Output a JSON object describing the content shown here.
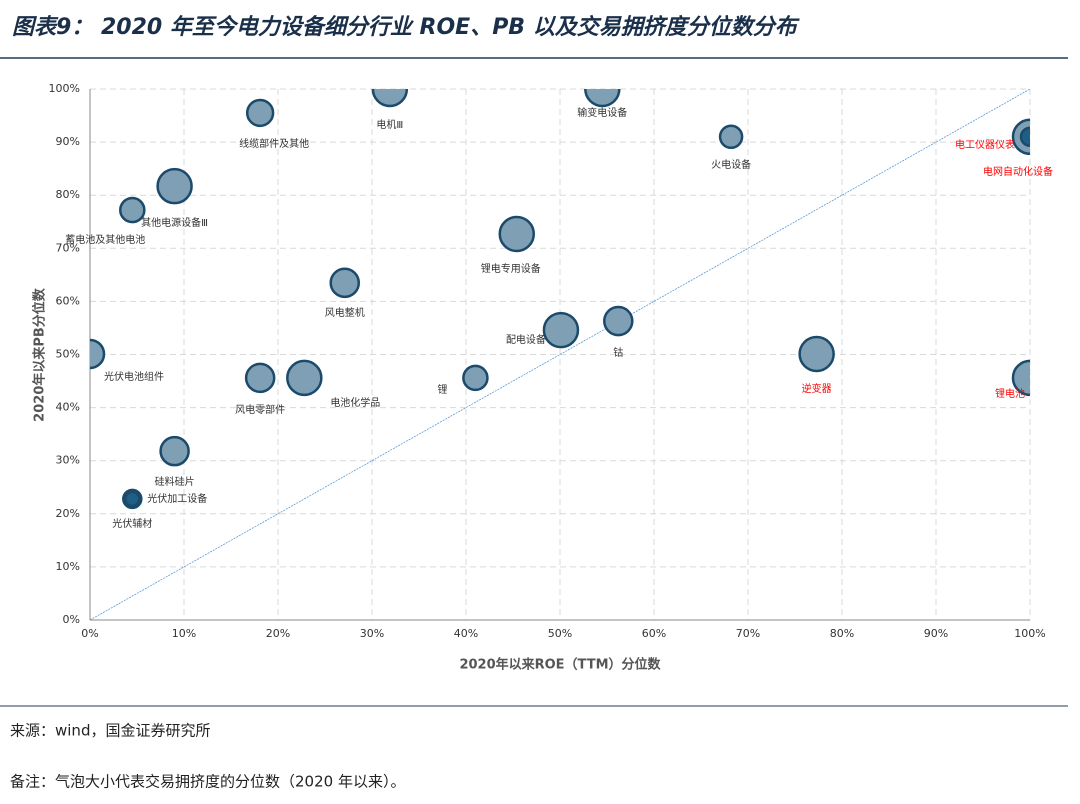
{
  "title": "图表9：  2020 年至今电力设备细分行业 ROE、PB 以及交易拥挤度分位数分布",
  "source": "来源：wind，国金证券研究所",
  "note": "备注：气泡大小代表交易拥挤度的分位数（2020 年以来）。",
  "chart_data": {
    "type": "bubble",
    "x_label": "2020年以来ROE（TTM）分位数",
    "y_label": "2020年以来PB分位数",
    "xlim": [
      0,
      100
    ],
    "ylim": [
      0,
      100
    ],
    "xticks": [
      {
        "value": 0,
        "label": "0%"
      },
      {
        "value": 10,
        "label": "10%"
      },
      {
        "value": 20,
        "label": "20%"
      },
      {
        "value": 30,
        "label": "30%"
      },
      {
        "value": 40,
        "label": "40%"
      },
      {
        "value": 50,
        "label": "50%"
      },
      {
        "value": 60,
        "label": "60%"
      },
      {
        "value": 70,
        "label": "70%"
      },
      {
        "value": 80,
        "label": "80%"
      },
      {
        "value": 90,
        "label": "90%"
      },
      {
        "value": 100,
        "label": "100%"
      }
    ],
    "yticks": [
      {
        "value": 0,
        "label": "0%"
      },
      {
        "value": 10,
        "label": "10%"
      },
      {
        "value": 20,
        "label": "20%"
      },
      {
        "value": 30,
        "label": "30%"
      },
      {
        "value": 40,
        "label": "40%"
      },
      {
        "value": 50,
        "label": "50%"
      },
      {
        "value": 60,
        "label": "60%"
      },
      {
        "value": 70,
        "label": "70%"
      },
      {
        "value": 80,
        "label": "80%"
      },
      {
        "value": 90,
        "label": "90%"
      },
      {
        "value": 100,
        "label": "100%"
      }
    ],
    "grid": true,
    "reference_line": "y=x",
    "points": [
      {
        "name": "电机Ⅲ",
        "x": 31.9,
        "y": 100,
        "size": 100,
        "color": "#7f9fb4",
        "label_color": "#333333"
      },
      {
        "name": "输变电设备",
        "x": 54.5,
        "y": 100,
        "size": 100,
        "color": "#7f9fb4",
        "label_color": "#333333"
      },
      {
        "name": "线缆部件及其他",
        "x": 18.1,
        "y": 95.5,
        "size": 58,
        "color": "#7f9fb4",
        "label_color": "#333333"
      },
      {
        "name": "火电设备",
        "x": 68.2,
        "y": 91,
        "size": 42,
        "color": "#7f9fb4",
        "label_color": "#333333"
      },
      {
        "name": "电工仪器仪表",
        "x": 100,
        "y": 91,
        "size": 100,
        "color": "#7f9fb4",
        "label_color": "#ff0000"
      },
      {
        "name": "电网自动化设备",
        "x": 100,
        "y": 91,
        "size": 28,
        "color": "#1f5f85",
        "label_color": "#ff0000"
      },
      {
        "name": "其他电源设备Ⅲ",
        "x": 9,
        "y": 81.7,
        "size": 100,
        "color": "#7f9fb4",
        "label_color": "#333333"
      },
      {
        "name": "蓄电池及其他电池",
        "x": 4.5,
        "y": 77.2,
        "size": 50,
        "color": "#7f9fb4",
        "label_color": "#333333"
      },
      {
        "name": "锂电专用设备",
        "x": 45.4,
        "y": 72.7,
        "size": 100,
        "color": "#7f9fb4",
        "label_color": "#333333"
      },
      {
        "name": "风电整机",
        "x": 27.1,
        "y": 63.5,
        "size": 68,
        "color": "#7f9fb4",
        "label_color": "#333333"
      },
      {
        "name": "光伏电池组件",
        "x": 0,
        "y": 50.1,
        "size": 68,
        "color": "#7f9fb4",
        "label_color": "#333333"
      },
      {
        "name": "配电设备",
        "x": 50.1,
        "y": 54.6,
        "size": 100,
        "color": "#7f9fb4",
        "label_color": "#333333"
      },
      {
        "name": "钴",
        "x": 56.2,
        "y": 56.3,
        "size": 68,
        "color": "#7f9fb4",
        "label_color": "#333333"
      },
      {
        "name": "逆变器",
        "x": 77.3,
        "y": 50.1,
        "size": 100,
        "color": "#7f9fb4",
        "label_color": "#ff0000"
      },
      {
        "name": "锂电池",
        "x": 100,
        "y": 45.6,
        "size": 100,
        "color": "#7f9fb4",
        "label_color": "#ff0000"
      },
      {
        "name": "风电零部件",
        "x": 18.1,
        "y": 45.6,
        "size": 68,
        "color": "#7f9fb4",
        "label_color": "#333333"
      },
      {
        "name": "电池化学品",
        "x": 22.8,
        "y": 45.6,
        "size": 100,
        "color": "#7f9fb4",
        "label_color": "#333333"
      },
      {
        "name": "锂",
        "x": 41,
        "y": 45.6,
        "size": 50,
        "color": "#7f9fb4",
        "label_color": "#333333"
      },
      {
        "name": "硅料硅片",
        "x": 9,
        "y": 31.8,
        "size": 68,
        "color": "#7f9fb4",
        "label_color": "#333333"
      },
      {
        "name": "光伏加工设备",
        "x": 4.5,
        "y": 22.8,
        "size": 28,
        "color": "#7f9fb4",
        "label_color": "#333333"
      },
      {
        "name": "光伏辅材",
        "x": 4.5,
        "y": 22.8,
        "size": 17,
        "color": "#1f5f85",
        "label_color": "#333333"
      }
    ]
  }
}
